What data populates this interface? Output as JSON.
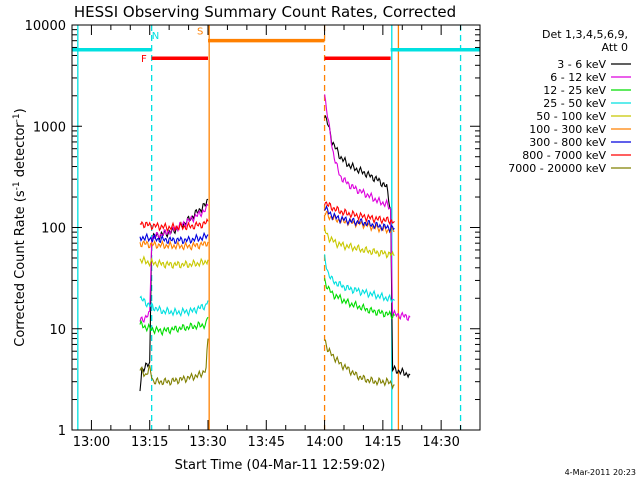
{
  "chart_data": {
    "type": "line",
    "title": "HESSI Observing Summary Count Rates, Corrected",
    "xlabel": "Start Time (04-Mar-11 12:59:02)",
    "ylabel_parts": [
      "Corrected Count Rate (s",
      "-1",
      " detector",
      "-1",
      ")"
    ],
    "y_scale": "log",
    "ylim": [
      1,
      10000
    ],
    "xlim_minutes": [
      -5,
      100
    ],
    "x_ticks": [
      {
        "label": "13:00",
        "minute": 0
      },
      {
        "label": "13:15",
        "minute": 15
      },
      {
        "label": "13:30",
        "minute": 30
      },
      {
        "label": "13:45",
        "minute": 45
      },
      {
        "label": "14:00",
        "minute": 60
      },
      {
        "label": "14:15",
        "minute": 75
      },
      {
        "label": "14:30",
        "minute": 90
      }
    ],
    "y_ticks": [
      {
        "label": "1",
        "value": 1
      },
      {
        "label": "10",
        "value": 10
      },
      {
        "label": "100",
        "value": 100
      },
      {
        "label": "1000",
        "value": 1000
      },
      {
        "label": "10000",
        "value": 10000
      }
    ],
    "legend_title": [
      "Det 1,3,4,5,6,9,",
      "Att 0"
    ],
    "legend_position": "right",
    "series": [
      {
        "name": "3 - 6 keV",
        "color": "#000000",
        "segments": [
          [
            [
              12.5,
              2.5
            ],
            [
              13,
              4
            ],
            [
              15,
              4.5
            ],
            [
              15.5,
              80
            ],
            [
              18,
              85
            ],
            [
              21,
              92
            ],
            [
              24,
              110
            ],
            [
              27,
              140
            ],
            [
              29.5,
              170
            ],
            [
              30,
              190
            ]
          ],
          [
            [
              60,
              1300
            ],
            [
              61,
              1000
            ],
            [
              62,
              700
            ],
            [
              64,
              500
            ],
            [
              66,
              420
            ],
            [
              68,
              380
            ],
            [
              70,
              350
            ],
            [
              72,
              320
            ],
            [
              74,
              290
            ],
            [
              76,
              250
            ],
            [
              77,
              150
            ],
            [
              77.5,
              4
            ],
            [
              82,
              3.5
            ]
          ]
        ]
      },
      {
        "name": "6 - 12 keV",
        "color": "#dd00dd",
        "segments": [
          [
            [
              12.5,
              12
            ],
            [
              14,
              13
            ],
            [
              15,
              14
            ],
            [
              15.5,
              80
            ],
            [
              18,
              85
            ],
            [
              21,
              95
            ],
            [
              24,
              110
            ],
            [
              27,
              130
            ],
            [
              29.5,
              150
            ],
            [
              30,
              165
            ]
          ],
          [
            [
              60,
              2100
            ],
            [
              61,
              1100
            ],
            [
              62,
              600
            ],
            [
              63,
              420
            ],
            [
              64,
              320
            ],
            [
              66,
              270
            ],
            [
              68,
              240
            ],
            [
              70,
              220
            ],
            [
              72,
              200
            ],
            [
              74,
              180
            ],
            [
              76,
              170
            ],
            [
              77,
              150
            ],
            [
              77.5,
              14
            ],
            [
              82,
              13
            ]
          ]
        ]
      },
      {
        "name": "12 - 25 keV",
        "color": "#00dd00",
        "segments": [
          [
            [
              12.5,
              11
            ],
            [
              15,
              10
            ],
            [
              18,
              9.5
            ],
            [
              22,
              10
            ],
            [
              26,
              10.5
            ],
            [
              29.5,
              11
            ],
            [
              30,
              13
            ]
          ],
          [
            [
              60,
              30
            ],
            [
              61,
              25
            ],
            [
              62,
              22
            ],
            [
              64,
              20
            ],
            [
              66,
              18
            ],
            [
              68,
              17
            ],
            [
              70,
              16
            ],
            [
              72,
              15
            ],
            [
              74,
              14.5
            ],
            [
              76,
              14
            ],
            [
              78,
              13.5
            ]
          ]
        ]
      },
      {
        "name": "25 - 50 keV",
        "color": "#00e0e0",
        "segments": [
          [
            [
              12.5,
              20
            ],
            [
              15,
              17
            ],
            [
              18,
              15
            ],
            [
              22,
              14.5
            ],
            [
              26,
              15
            ],
            [
              29.5,
              17
            ],
            [
              30,
              19
            ]
          ],
          [
            [
              60,
              50
            ],
            [
              61,
              35
            ],
            [
              62,
              30
            ],
            [
              64,
              27
            ],
            [
              66,
              25
            ],
            [
              68,
              24
            ],
            [
              70,
              23
            ],
            [
              72,
              22
            ],
            [
              74,
              21
            ],
            [
              76,
              20
            ],
            [
              78,
              19
            ]
          ]
        ]
      },
      {
        "name": "50 - 100 keV",
        "color": "#c8c800",
        "segments": [
          [
            [
              12.5,
              48
            ],
            [
              15,
              45
            ],
            [
              20,
              43
            ],
            [
              25,
              43
            ],
            [
              29,
              45
            ],
            [
              30,
              48
            ]
          ],
          [
            [
              60,
              95
            ],
            [
              61,
              80
            ],
            [
              63,
              70
            ],
            [
              65,
              66
            ],
            [
              67,
              64
            ],
            [
              70,
              60
            ],
            [
              73,
              57
            ],
            [
              76,
              55
            ],
            [
              78,
              53
            ]
          ]
        ]
      },
      {
        "name": "100 - 300 keV",
        "color": "#ff8000",
        "segments": [
          [
            [
              12.5,
              70
            ],
            [
              15,
              68
            ],
            [
              20,
              66
            ],
            [
              25,
              65
            ],
            [
              29,
              68
            ],
            [
              30,
              72
            ]
          ],
          [
            [
              60,
              140
            ],
            [
              61,
              130
            ],
            [
              63,
              120
            ],
            [
              65,
              115
            ],
            [
              67,
              112
            ],
            [
              70,
              108
            ],
            [
              73,
              100
            ],
            [
              76,
              95
            ],
            [
              78,
              92
            ]
          ]
        ]
      },
      {
        "name": "300 - 800 keV",
        "color": "#0000dd",
        "segments": [
          [
            [
              12.5,
              80
            ],
            [
              15,
              78
            ],
            [
              20,
              75
            ],
            [
              25,
              75
            ],
            [
              29,
              80
            ],
            [
              30,
              85
            ]
          ],
          [
            [
              60,
              160
            ],
            [
              61,
              140
            ],
            [
              63,
              125
            ],
            [
              65,
              120
            ],
            [
              67,
              115
            ],
            [
              70,
              112
            ],
            [
              73,
              105
            ],
            [
              76,
              100
            ],
            [
              78,
              98
            ]
          ]
        ]
      },
      {
        "name": "800 - 7000 keV",
        "color": "#ff0000",
        "segments": [
          [
            [
              12.5,
              110
            ],
            [
              15,
              105
            ],
            [
              20,
              100
            ],
            [
              25,
              102
            ],
            [
              29,
              108
            ],
            [
              30,
              115
            ]
          ],
          [
            [
              60,
              180
            ],
            [
              61,
              165
            ],
            [
              63,
              150
            ],
            [
              65,
              140
            ],
            [
              67,
              135
            ],
            [
              70,
              128
            ],
            [
              73,
              122
            ],
            [
              76,
              118
            ],
            [
              78,
              115
            ]
          ]
        ]
      },
      {
        "name": "7000 - 20000 keV",
        "color": "#808000",
        "segments": [
          [
            [
              12.5,
              4
            ],
            [
              14,
              3.5
            ],
            [
              15,
              4
            ],
            [
              16,
              3
            ],
            [
              20,
              3
            ],
            [
              24,
              3.2
            ],
            [
              28,
              3.5
            ],
            [
              29.5,
              4
            ],
            [
              30,
              8
            ]
          ],
          [
            [
              60,
              8
            ],
            [
              61,
              6
            ],
            [
              62,
              5.5
            ],
            [
              63,
              5
            ],
            [
              64,
              4.5
            ],
            [
              66,
              4
            ],
            [
              68,
              3.5
            ],
            [
              70,
              3.2
            ],
            [
              73,
              3
            ],
            [
              76,
              3
            ],
            [
              78,
              2.8
            ]
          ]
        ]
      }
    ],
    "attenuator_bars": [
      {
        "label": "",
        "color": "#00e0e0",
        "x_start": -5,
        "x_end": 15.5,
        "y": 5700
      },
      {
        "label": "F",
        "color": "#ff0000",
        "x_start": 15.5,
        "x_end": 30,
        "y": 4700
      },
      {
        "label": "S",
        "color": "#ff8000",
        "x_start": 30,
        "x_end": 60,
        "y": 7000
      },
      {
        "label": "",
        "color": "#ff0000",
        "x_start": 60,
        "x_end": 77,
        "y": 4700
      },
      {
        "label": "",
        "color": "#00e0e0",
        "x_start": 77,
        "x_end": 100,
        "y": 5700
      }
    ],
    "attenuator_labels": [
      {
        "label": "F",
        "color": "#ff0000",
        "x": 13.5,
        "y": 4700
      },
      {
        "label": "N",
        "color": "#00e0e0",
        "x": 16.5,
        "y": 8000
      },
      {
        "label": "S",
        "color": "#ff8000",
        "x": 28,
        "y": 8800
      }
    ],
    "vertical_markers": [
      {
        "minute": -3.5,
        "color": "#00e0e0",
        "style": "solid"
      },
      {
        "minute": 15.5,
        "color": "#00e0e0",
        "style": "dashed"
      },
      {
        "minute": 30.3,
        "color": "#ff8000",
        "style": "solid"
      },
      {
        "minute": 60,
        "color": "#ff8000",
        "style": "dashed"
      },
      {
        "minute": 77.3,
        "color": "#00e0e0",
        "style": "solid"
      },
      {
        "minute": 79,
        "color": "#ff8000",
        "style": "solid"
      },
      {
        "minute": 95,
        "color": "#00e0e0",
        "style": "dashed"
      }
    ],
    "footer": "4-Mar-2011 20:23"
  }
}
